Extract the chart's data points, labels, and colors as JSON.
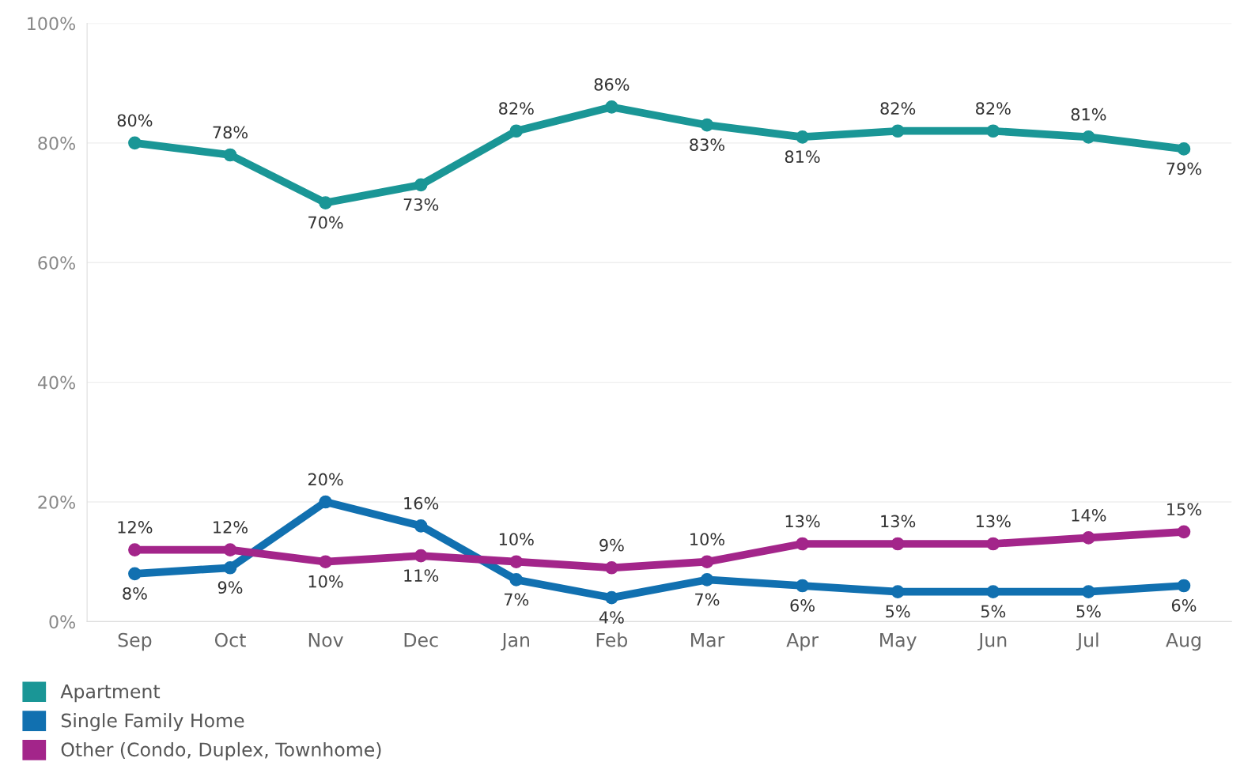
{
  "chart_data": {
    "type": "line",
    "categories": [
      "Sep",
      "Oct",
      "Nov",
      "Dec",
      "Jan",
      "Feb",
      "Mar",
      "Apr",
      "May",
      "Jun",
      "Jul",
      "Aug"
    ],
    "series": [
      {
        "name": "Apartment",
        "color": "#1a9696",
        "values": [
          80,
          78,
          70,
          73,
          82,
          86,
          83,
          81,
          82,
          82,
          81,
          79
        ],
        "value_labels": [
          "80%",
          "78%",
          "70%",
          "73%",
          "82%",
          "86%",
          "83%",
          "81%",
          "82%",
          "82%",
          "81%",
          "79%"
        ]
      },
      {
        "name": "Single Family Home",
        "color": "#1170b0",
        "values": [
          8,
          9,
          20,
          16,
          7,
          4,
          7,
          6,
          5,
          5,
          5,
          6
        ],
        "value_labels": [
          "8%",
          "9%",
          "20%",
          "16%",
          "7%",
          "4%",
          "7%",
          "6%",
          "5%",
          "5%",
          "5%",
          "6%"
        ]
      },
      {
        "name": "Other (Condo, Duplex, Townhome)",
        "color": "#a3258a",
        "values": [
          12,
          12,
          10,
          11,
          10,
          9,
          10,
          13,
          13,
          13,
          14,
          15
        ],
        "value_labels": [
          "12%",
          "12%",
          "10%",
          "11%",
          "10%",
          "9%",
          "10%",
          "13%",
          "13%",
          "13%",
          "14%",
          "15%"
        ]
      }
    ],
    "ylim": [
      0,
      100
    ],
    "yticks": [
      {
        "value": 0,
        "label": "0%"
      },
      {
        "value": 20,
        "label": "20%"
      },
      {
        "value": 40,
        "label": "40%"
      },
      {
        "value": 60,
        "label": "60%"
      },
      {
        "value": 80,
        "label": "80%"
      },
      {
        "value": 100,
        "label": "100%"
      }
    ],
    "grid": "y",
    "legend": "bottom",
    "marker": "circle",
    "line_style": "solid"
  }
}
